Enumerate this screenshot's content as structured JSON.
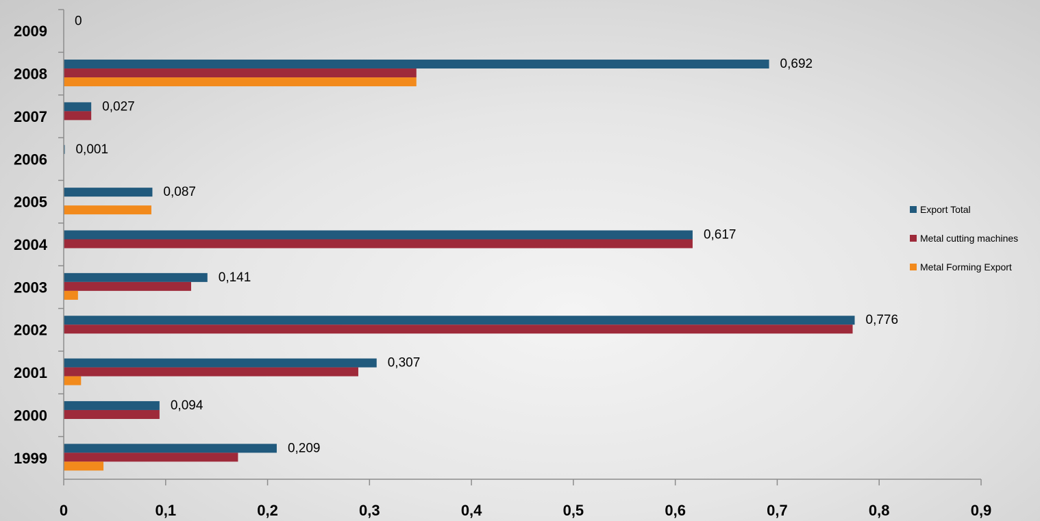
{
  "chart_data": {
    "type": "bar",
    "orientation": "horizontal",
    "categories": [
      "1999",
      "2000",
      "2001",
      "2002",
      "2003",
      "2004",
      "2005",
      "2006",
      "2007",
      "2008",
      "2009"
    ],
    "series": [
      {
        "name": "Export Total",
        "color": "#215a7d",
        "values": [
          0.209,
          0.094,
          0.307,
          0.776,
          0.141,
          0.617,
          0.087,
          0.001,
          0.027,
          0.692,
          0
        ]
      },
      {
        "name": "Metal cutting machines",
        "color": "#9e2a3a",
        "values": [
          0.171,
          0.094,
          0.289,
          0.774,
          0.125,
          0.617,
          0,
          0,
          0.027,
          0.346,
          0
        ]
      },
      {
        "name": "Metal Forming Export",
        "color": "#f28a1c",
        "values": [
          0.039,
          0,
          0.017,
          0,
          0.014,
          0,
          0.086,
          0,
          0,
          0.346,
          0
        ]
      }
    ],
    "data_labels": [
      "0,209",
      "0,094",
      "0,307",
      "0,776",
      "0,141",
      "0,617",
      "0,087",
      "0,001",
      "0,027",
      "0,692",
      "0"
    ],
    "x_ticks": [
      "0",
      "0,1",
      "0,2",
      "0,3",
      "0,4",
      "0,5",
      "0,6",
      "0,7",
      "0,8",
      "0,9"
    ],
    "xlim": [
      0,
      0.9
    ],
    "title": "",
    "xlabel": "",
    "ylabel": "",
    "grid": false,
    "legend_position": "right"
  }
}
